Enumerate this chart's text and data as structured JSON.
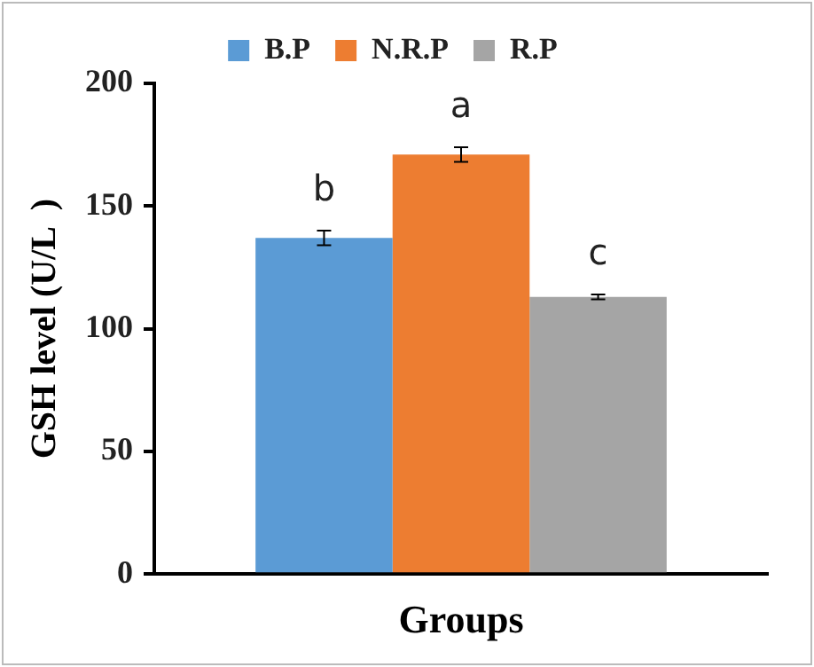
{
  "chart_data": {
    "type": "bar",
    "xlabel": "Groups",
    "ylabel": "GSH level (U/L  )",
    "categories": [
      null
    ],
    "series": [
      {
        "name": "B.P",
        "color": "#5b9bd5",
        "values": [
          137
        ],
        "errors": [
          3
        ]
      },
      {
        "name": "N.R.P",
        "color": "#ed7d31",
        "values": [
          171
        ],
        "errors": [
          3
        ]
      },
      {
        "name": "R.P",
        "color": "#a5a5a5",
        "values": [
          113
        ],
        "errors": [
          1
        ]
      }
    ],
    "ylim": [
      0,
      200
    ],
    "yticks": [
      0,
      50,
      100,
      150,
      200
    ],
    "grid": false,
    "legend": "top",
    "annotations": [
      "b",
      "a",
      "c"
    ]
  }
}
